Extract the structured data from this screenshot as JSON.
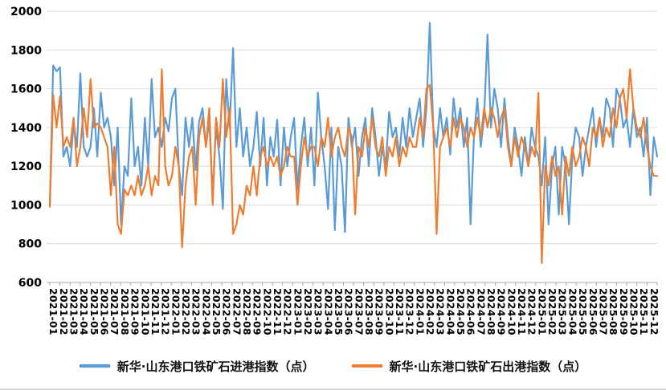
{
  "page": {
    "background": "#ffffff"
  },
  "chart_data": {
    "type": "line",
    "title": "",
    "xlabel": "",
    "ylabel": "",
    "ylim": [
      600,
      2000
    ],
    "y_ticks": [
      600,
      800,
      1000,
      1200,
      1400,
      1600,
      1800,
      2000
    ],
    "grid": true,
    "legend_position": "bottom",
    "points_per_month": 3,
    "categories": [
      "2021-01",
      "2021-02",
      "2021-03",
      "2021-04",
      "2021-05",
      "2021-06",
      "2021-07",
      "2021-08",
      "2021-09",
      "2021-10",
      "2021-11",
      "2021-12",
      "2022-01",
      "2022-02",
      "2022-03",
      "2022-04",
      "2022-05",
      "2022-06",
      "2022-07",
      "2022-08",
      "2022-09",
      "2022-10",
      "2022-11",
      "2022-12",
      "2023-01",
      "2023-02",
      "2023-03",
      "2023-04",
      "2023-05",
      "2023-06",
      "2023-07",
      "2023-08",
      "2023-09",
      "2023-10",
      "2023-11",
      "2023-12",
      "2024-01",
      "2024-02",
      "2024-03",
      "2024-04",
      "2024-05",
      "2024-06",
      "2024-07",
      "2024-08",
      "2024-09",
      "2024-10",
      "2024-11",
      "2024-12",
      "2025-01",
      "2025-02",
      "2025-03",
      "2025-04",
      "2025-05",
      "2025-06",
      "2025-07",
      "2025-08",
      "2025-09",
      "2025-10",
      "2025-11",
      "2025-12"
    ],
    "series": [
      {
        "name": "新华·山东港口铁矿石进港指数（点）",
        "color": "#5B9BD5",
        "values": [
          1000,
          1720,
          1690,
          1710,
          1250,
          1300,
          1200,
          1420,
          1300,
          1680,
          1300,
          1250,
          1300,
          1500,
          1250,
          1580,
          1400,
          1450,
          1350,
          1100,
          1400,
          900,
          1200,
          1150,
          1550,
          1200,
          1300,
          1100,
          1450,
          1200,
          1650,
          1350,
          1400,
          1300,
          1450,
          1380,
          1550,
          1600,
          1200,
          1050,
          1450,
          1300,
          1450,
          1180,
          1430,
          1500,
          1300,
          1440,
          1050,
          1400,
          1250,
          980,
          1650,
          1400,
          1810,
          1300,
          1500,
          1250,
          1400,
          1200,
          1300,
          1480,
          1200,
          1450,
          1100,
          1350,
          1250,
          1440,
          1100,
          1400,
          1200,
          1350,
          1450,
          1080,
          1300,
          1450,
          1200,
          1400,
          1100,
          1580,
          1350,
          1200,
          980,
          1400,
          870,
          1300,
          1200,
          860,
          1450,
          1300,
          1400,
          1150,
          1350,
          1450,
          1200,
          1500,
          1350,
          1150,
          1300,
          1200,
          1480,
          1350,
          1400,
          1250,
          1450,
          1300,
          1500,
          1350,
          1450,
          1550,
          1300,
          1500,
          1940,
          1400,
          1300,
          1500,
          1350,
          1450,
          1260,
          1550,
          1400,
          1500,
          1300,
          1450,
          900,
          1350,
          1550,
          1300,
          1450,
          1880,
          1400,
          1600,
          1500,
          1300,
          1550,
          1350,
          1200,
          1400,
          1300,
          1150,
          1350,
          1200,
          1400,
          1300,
          1250,
          1100,
          1350,
          900,
          1200,
          1300,
          950,
          1300,
          1200,
          900,
          1250,
          1400,
          1350,
          1150,
          1300,
          1400,
          1500,
          1300,
          1450,
          1350,
          1550,
          1500,
          1300,
          1600,
          1550,
          1400,
          1450,
          1300,
          1500,
          1350,
          1400,
          1250,
          1450,
          1050,
          1350,
          1250
        ]
      },
      {
        "name": "新华·山东港口铁矿石出港指数（点）",
        "color": "#ED7D31",
        "values": [
          990,
          1570,
          1400,
          1560,
          1300,
          1350,
          1300,
          1450,
          1200,
          1300,
          1500,
          1350,
          1650,
          1400,
          1420,
          1400,
          1350,
          1300,
          1050,
          1300,
          900,
          850,
          1080,
          1050,
          1100,
          1050,
          1150,
          1050,
          1100,
          1200,
          1050,
          1150,
          1100,
          1700,
          1200,
          1100,
          1150,
          1300,
          1200,
          780,
          1100,
          1250,
          1300,
          1000,
          1350,
          1450,
          1300,
          1500,
          1000,
          1450,
          1300,
          1650,
          1350,
          1500,
          850,
          900,
          1000,
          950,
          1100,
          1050,
          1200,
          1050,
          1250,
          1300,
          1200,
          1250,
          1200,
          1250,
          1150,
          1200,
          1300,
          1250,
          1250,
          1000,
          1200,
          1350,
          1250,
          1300,
          1300,
          1200,
          1350,
          1300,
          1450,
          1250,
          1350,
          1400,
          1300,
          1250,
          1400,
          1350,
          950,
          1300,
          1250,
          1400,
          1300,
          1450,
          1300,
          1250,
          1350,
          1150,
          1300,
          1250,
          1350,
          1200,
          1300,
          1250,
          1350,
          1300,
          1300,
          1450,
          1350,
          1600,
          1620,
          1400,
          850,
          1300,
          1350,
          1400,
          1300,
          1450,
          1350,
          1450,
          1400,
          1300,
          1400,
          1350,
          1450,
          1350,
          1500,
          1400,
          1500,
          1450,
          1350,
          1450,
          1500,
          1300,
          1200,
          1350,
          1250,
          1350,
          1300,
          1200,
          1300,
          1250,
          1580,
          700,
          1200,
          1100,
          1250,
          1150,
          1200,
          950,
          1250,
          1150,
          1300,
          1200,
          1250,
          1350,
          1300,
          1200,
          1400,
          1350,
          1450,
          1300,
          1400,
          1350,
          1500,
          1400,
          1550,
          1600,
          1450,
          1700,
          1500,
          1400,
          1350,
          1450,
          1300,
          1200,
          1150,
          1150
        ]
      }
    ]
  }
}
